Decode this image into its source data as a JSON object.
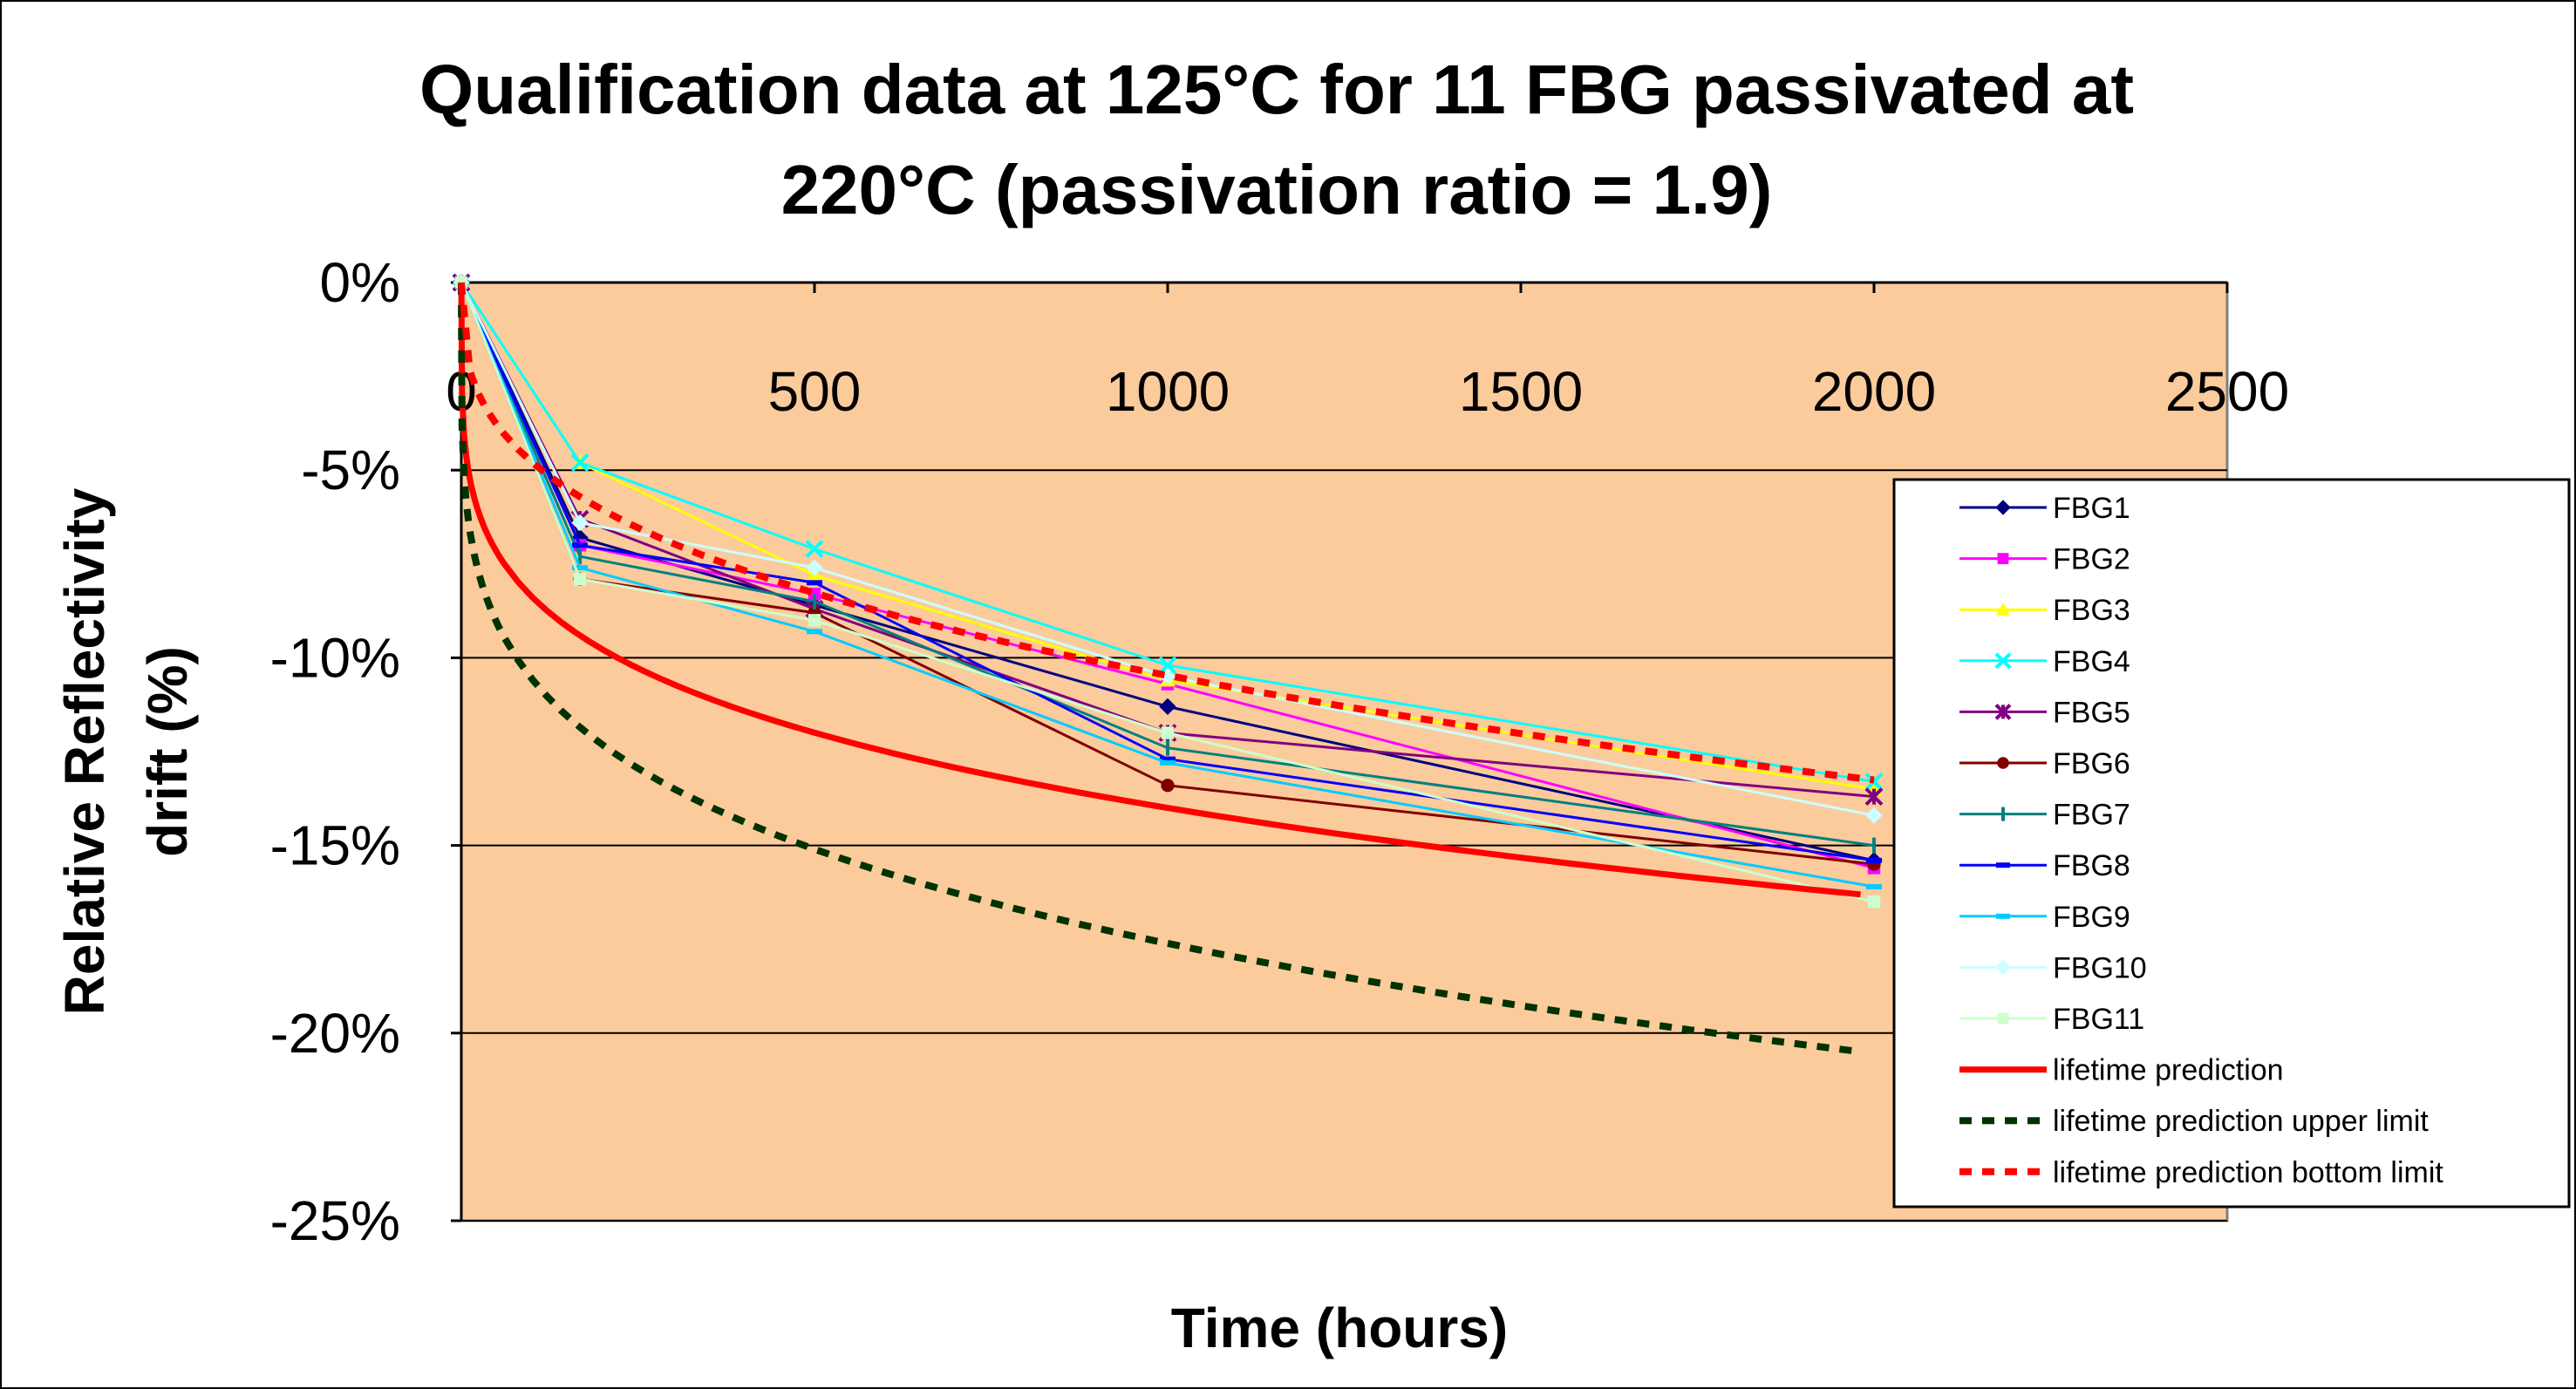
{
  "chart_data": {
    "type": "line",
    "title_lines": [
      "Qualification data at 125°C for 11 FBG passivated at",
      "220°C (passivation ratio = 1.9)"
    ],
    "xlabel": "Time (hours)",
    "ylabel_lines": [
      "Relative Reflectivity",
      "drift (%)"
    ],
    "xlim": [
      0,
      2500
    ],
    "ylim": [
      -25,
      0
    ],
    "xticks": [
      0,
      500,
      1000,
      1500,
      2000,
      2500
    ],
    "xtick_labels": [
      "0",
      "500",
      "1000",
      "1500",
      "2000",
      "2500"
    ],
    "yticks": [
      0,
      -5,
      -10,
      -15,
      -20,
      -25
    ],
    "ytick_labels": [
      "0%",
      "-5%",
      "-10%",
      "-15%",
      "-20%",
      "-25%"
    ],
    "plot_background": "#FBCB9C",
    "grid": "horizontal",
    "legend_position": "right",
    "x": [
      0,
      168,
      500,
      1000,
      2000
    ],
    "series": [
      {
        "name": "FBG1",
        "color": "#000080",
        "marker": "diamond",
        "values": [
          0,
          -6.8,
          -8.6,
          -11.3,
          -15.4
        ]
      },
      {
        "name": "FBG2",
        "color": "#FF00FF",
        "marker": "square",
        "values": [
          0,
          -7.0,
          -8.3,
          -10.7,
          -15.6
        ]
      },
      {
        "name": "FBG3",
        "color": "#FFFF00",
        "marker": "triangle",
        "values": [
          0,
          -4.8,
          -7.8,
          -10.6,
          -13.5
        ]
      },
      {
        "name": "FBG4",
        "color": "#00FFFF",
        "marker": "x",
        "values": [
          0,
          -4.8,
          -7.1,
          -10.2,
          -13.3
        ]
      },
      {
        "name": "FBG5",
        "color": "#800080",
        "marker": "star",
        "values": [
          0,
          -6.3,
          -8.7,
          -12.0,
          -13.7
        ]
      },
      {
        "name": "FBG6",
        "color": "#800000",
        "marker": "circle",
        "values": [
          0,
          -7.9,
          -8.8,
          -13.4,
          -15.5
        ]
      },
      {
        "name": "FBG7",
        "color": "#008080",
        "marker": "plus",
        "values": [
          0,
          -7.3,
          -8.5,
          -12.4,
          -15.0
        ]
      },
      {
        "name": "FBG8",
        "color": "#0000FF",
        "marker": "dash",
        "values": [
          0,
          -7.0,
          -8.0,
          -12.7,
          -15.4
        ]
      },
      {
        "name": "FBG9",
        "color": "#00CCFF",
        "marker": "dash",
        "values": [
          0,
          -7.6,
          -9.3,
          -12.8,
          -16.1
        ]
      },
      {
        "name": "FBG10",
        "color": "#CCFFFF",
        "marker": "diamond",
        "values": [
          0,
          -6.4,
          -7.6,
          -10.5,
          -14.2
        ]
      },
      {
        "name": "FBG11",
        "color": "#CCFFCC",
        "marker": "square",
        "values": [
          0,
          -7.9,
          -9.0,
          -12.0,
          -16.5
        ]
      },
      {
        "name": "lifetime prediction",
        "color": "#FF0000",
        "style": "solid",
        "curve": "power",
        "coef": -3.0,
        "exp": 0.223,
        "x0": 1
      },
      {
        "name": "lifetime prediction upper limit",
        "color": "#003300",
        "style": "dotted",
        "curve": "power",
        "coef": -3.8,
        "exp": 0.222,
        "x0": 1
      },
      {
        "name": "lifetime prediction bottom limit",
        "color": "#FF0000",
        "style": "dotted",
        "curve": "power",
        "coef": -1.0,
        "exp": 0.34,
        "x0": 12
      }
    ]
  }
}
